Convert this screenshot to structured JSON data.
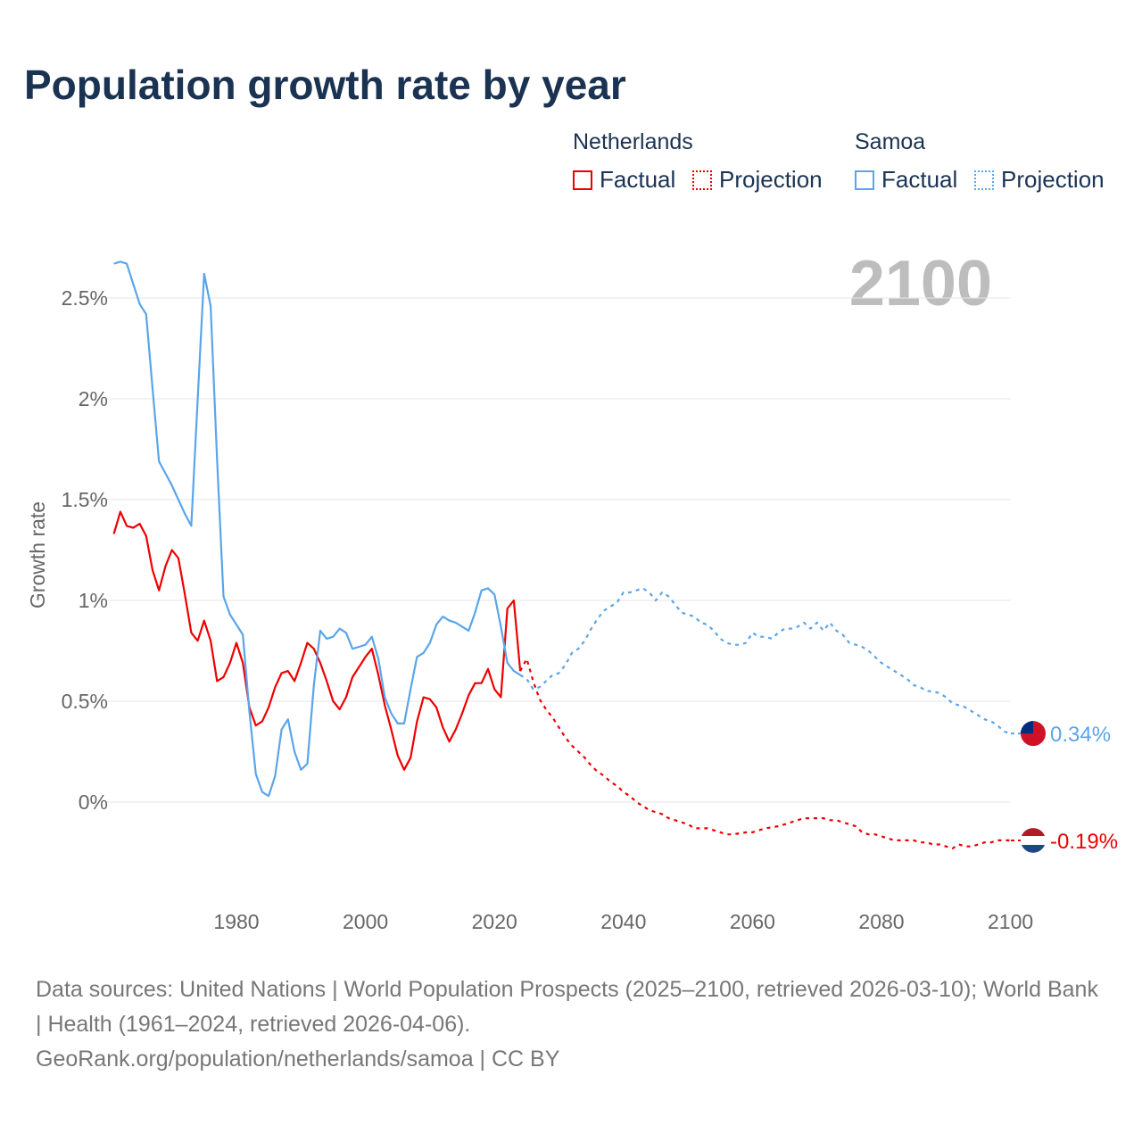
{
  "title": "Population growth rate by year",
  "legend": {
    "groups": [
      {
        "name": "Netherlands",
        "factual": "Factual",
        "projection": "Projection",
        "color": "#ee0000"
      },
      {
        "name": "Samoa",
        "factual": "Factual",
        "projection": "Projection",
        "color": "#5aa5ea"
      }
    ]
  },
  "footer": {
    "sources": "Data sources: United Nations | World Population Prospects (2025–2100, retrieved 2026-03-10); World Bank | Health (1961–2024, retrieved 2026-04-06).",
    "link": "GeoRank.org/population/netherlands/samoa | CC BY"
  },
  "chart_data": {
    "type": "line",
    "title": "Population growth rate by year",
    "ylabel": "Growth rate",
    "xlabel": "",
    "year_label": "2100",
    "xlim": [
      1961,
      2100
    ],
    "ylim": [
      -0.5,
      2.75
    ],
    "xticks": [
      1980,
      2000,
      2020,
      2040,
      2060,
      2080,
      2100
    ],
    "xtick_labels": [
      "1980",
      "2000",
      "2020",
      "2040",
      "2060",
      "2080",
      "2100"
    ],
    "yticks": [
      0,
      0.5,
      1,
      1.5,
      2,
      2.5
    ],
    "ytick_labels": [
      "0%",
      "0.5%",
      "1%",
      "1.5%",
      "2%",
      "2.5%"
    ],
    "grid": true,
    "series": [
      {
        "name": "Netherlands Factual",
        "color": "#ee0000",
        "dashed": false,
        "start": 1961,
        "values": [
          1.33,
          1.44,
          1.37,
          1.36,
          1.38,
          1.32,
          1.15,
          1.05,
          1.17,
          1.25,
          1.21,
          1.03,
          0.84,
          0.8,
          0.9,
          0.8,
          0.6,
          0.62,
          0.69,
          0.79,
          0.69,
          0.47,
          0.38,
          0.4,
          0.47,
          0.57,
          0.64,
          0.65,
          0.6,
          0.69,
          0.79,
          0.76,
          0.69,
          0.6,
          0.5,
          0.46,
          0.52,
          0.62,
          0.67,
          0.72,
          0.76,
          0.63,
          0.48,
          0.36,
          0.23,
          0.16,
          0.22,
          0.4,
          0.52,
          0.51,
          0.47,
          0.37,
          0.3,
          0.36,
          0.44,
          0.53,
          0.59,
          0.59,
          0.66,
          0.56,
          0.52,
          0.96,
          1.0,
          0.65
        ]
      },
      {
        "name": "Netherlands Projection",
        "color": "#ee0000",
        "dashed": true,
        "start": 2024,
        "values": [
          0.65,
          0.71,
          0.6,
          0.51,
          0.46,
          0.42,
          0.37,
          0.32,
          0.28,
          0.25,
          0.22,
          0.18,
          0.15,
          0.13,
          0.1,
          0.08,
          0.05,
          0.03,
          0.0,
          -0.02,
          -0.04,
          -0.05,
          -0.06,
          -0.08,
          -0.09,
          -0.1,
          -0.11,
          -0.13,
          -0.13,
          -0.13,
          -0.14,
          -0.15,
          -0.16,
          -0.16,
          -0.155,
          -0.15,
          -0.15,
          -0.14,
          -0.13,
          -0.125,
          -0.12,
          -0.11,
          -0.1,
          -0.09,
          -0.08,
          -0.08,
          -0.08,
          -0.08,
          -0.09,
          -0.09,
          -0.1,
          -0.11,
          -0.12,
          -0.15,
          -0.16,
          -0.16,
          -0.17,
          -0.18,
          -0.19,
          -0.19,
          -0.19,
          -0.19,
          -0.2,
          -0.2,
          -0.21,
          -0.21,
          -0.22,
          -0.23,
          -0.21,
          -0.22,
          -0.22,
          -0.21,
          -0.2,
          -0.2,
          -0.19,
          -0.19,
          -0.19
        ]
      },
      {
        "name": "Samoa Factual",
        "color": "#5aa5ea",
        "dashed": false,
        "start": 1961,
        "values": [
          2.67,
          2.68,
          2.67,
          2.57,
          2.47,
          2.42,
          2.05,
          1.69,
          1.63,
          1.57,
          1.5,
          1.43,
          1.37,
          2.0,
          2.62,
          2.46,
          1.7,
          1.02,
          0.93,
          0.88,
          0.83,
          0.45,
          0.14,
          0.05,
          0.03,
          0.13,
          0.36,
          0.41,
          0.25,
          0.16,
          0.19,
          0.58,
          0.85,
          0.81,
          0.82,
          0.86,
          0.84,
          0.76,
          0.77,
          0.78,
          0.82,
          0.71,
          0.52,
          0.44,
          0.39,
          0.39,
          0.56,
          0.72,
          0.74,
          0.79,
          0.88,
          0.92,
          0.9,
          0.89,
          0.87,
          0.85,
          0.94,
          1.05,
          1.06,
          1.03,
          0.87,
          0.69,
          0.65,
          0.63
        ]
      },
      {
        "name": "Samoa Projection",
        "color": "#5aa5ea",
        "dashed": true,
        "start": 2024,
        "values": [
          0.63,
          0.61,
          0.56,
          0.57,
          0.6,
          0.63,
          0.64,
          0.68,
          0.74,
          0.76,
          0.8,
          0.86,
          0.91,
          0.95,
          0.97,
          0.99,
          1.04,
          1.04,
          1.05,
          1.06,
          1.04,
          1.0,
          1.04,
          1.02,
          0.98,
          0.94,
          0.93,
          0.92,
          0.89,
          0.88,
          0.85,
          0.81,
          0.79,
          0.78,
          0.78,
          0.79,
          0.84,
          0.82,
          0.82,
          0.81,
          0.84,
          0.86,
          0.86,
          0.87,
          0.89,
          0.86,
          0.89,
          0.85,
          0.89,
          0.85,
          0.83,
          0.79,
          0.78,
          0.77,
          0.75,
          0.72,
          0.69,
          0.67,
          0.65,
          0.63,
          0.61,
          0.58,
          0.57,
          0.55,
          0.55,
          0.54,
          0.52,
          0.49,
          0.48,
          0.47,
          0.45,
          0.43,
          0.41,
          0.4,
          0.38,
          0.35,
          0.34
        ]
      }
    ],
    "end_labels": [
      {
        "country": "Samoa",
        "label": "0.34%",
        "color": "#5aa5ea",
        "value": 0.34
      },
      {
        "country": "Netherlands",
        "label": "-0.19%",
        "color": "#ee0000",
        "value": -0.19
      }
    ]
  }
}
